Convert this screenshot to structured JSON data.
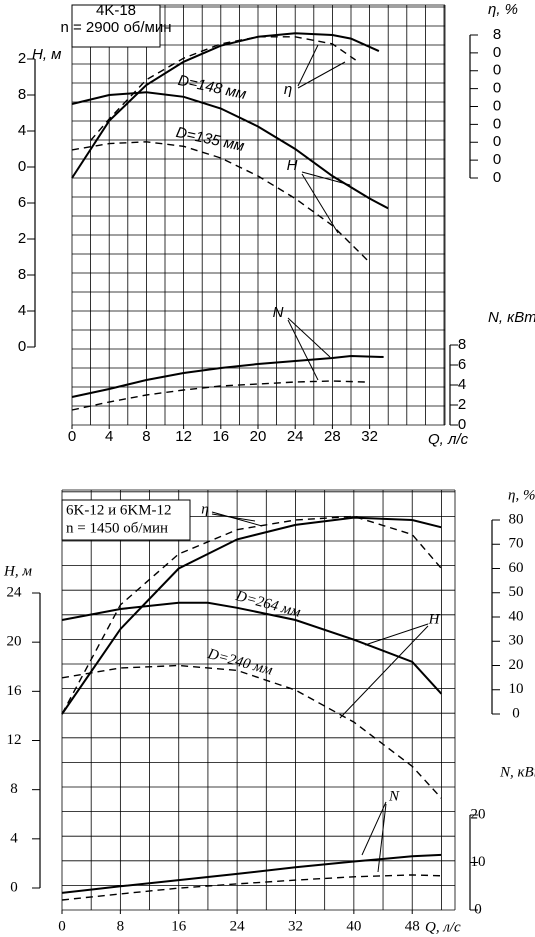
{
  "chart_data": [
    {
      "type": "line",
      "title": "4K-18",
      "subtitle": "n = 2900 об/мин",
      "ylabel": "H, м",
      "y2label": "η, %",
      "y3label": "N, кВт",
      "xlabel": "Q, л/с",
      "xlim": [
        0,
        40
      ],
      "xticks": [
        0,
        4,
        8,
        12,
        16,
        20,
        24,
        28,
        32
      ],
      "ylim": [
        0,
        32
      ],
      "yticks": [
        0,
        4,
        8,
        {
          "value": 12,
          "label": "2"
        },
        {
          "value": 16,
          "label": "6"
        },
        {
          "value": 20,
          "label": "0"
        },
        {
          "value": 24,
          "label": "4"
        },
        {
          "value": 28,
          "label": "8"
        },
        {
          "value": 32,
          "label": "2"
        }
      ],
      "y2lim": [
        0,
        80
      ],
      "y2ticks": [
        0,
        {
          "value": 10,
          "label": "0"
        },
        {
          "value": 20,
          "label": "0"
        },
        {
          "value": 30,
          "label": "0"
        },
        {
          "value": 40,
          "label": "0"
        },
        {
          "value": 50,
          "label": "0"
        },
        {
          "value": 60,
          "label": "0"
        },
        {
          "value": 70,
          "label": "0"
        },
        {
          "value": 80,
          "label": "8"
        }
      ],
      "y3lim": [
        0,
        8
      ],
      "y3ticks": [
        0,
        2,
        4,
        6,
        8
      ],
      "grid": true,
      "color": "#000000",
      "annotations": [
        "D=148 мм",
        "D=135 мм",
        "η",
        "H",
        "N"
      ],
      "series": [
        {
          "name": "D=148 мм",
          "axis": "y",
          "dashed": false,
          "x": [
            0,
            4,
            8,
            12,
            16,
            20,
            24,
            28,
            32,
            34
          ],
          "values": [
            27,
            28,
            28.3,
            27.8,
            26.5,
            24.5,
            22,
            19,
            16.5,
            15.4
          ]
        },
        {
          "name": "D=135 мм",
          "axis": "y",
          "dashed": true,
          "x": [
            0,
            4,
            8,
            12,
            16,
            20,
            24,
            28,
            32
          ],
          "values": [
            21.9,
            22.6,
            22.8,
            22.3,
            21,
            19,
            16.5,
            13.5,
            9.4
          ]
        },
        {
          "axis": "y2",
          "dashed": false,
          "x": [
            0,
            4,
            8,
            12,
            16,
            20,
            24,
            28,
            30,
            33
          ],
          "values": [
            0,
            32,
            52,
            65,
            74,
            79,
            81,
            80,
            78,
            71
          ]
        },
        {
          "axis": "y2",
          "dashed": true,
          "x": [
            2,
            4,
            8,
            12,
            16,
            20,
            24,
            28,
            30.5
          ],
          "values": [
            21,
            33,
            55,
            67,
            75,
            79,
            79,
            75,
            66
          ]
        },
        {
          "axis": "y3",
          "dashed": false,
          "x": [
            0,
            4,
            8,
            12,
            16,
            20,
            24,
            28,
            30,
            33.5
          ],
          "values": [
            2.8,
            3.6,
            4.5,
            5.2,
            5.7,
            6.1,
            6.4,
            6.7,
            6.9,
            6.8
          ]
        },
        {
          "axis": "y3",
          "dashed": true,
          "x": [
            0,
            4,
            8,
            12,
            16,
            20,
            24,
            28,
            31.5
          ],
          "values": [
            1.5,
            2.3,
            3,
            3.5,
            3.9,
            4.1,
            4.3,
            4.4,
            4.3
          ]
        }
      ]
    },
    {
      "type": "line",
      "title": "6K-12 и 6KM-12",
      "subtitle": "n = 1450 об/мин",
      "ylabel": "H, м",
      "y2label": "η, %",
      "y3label": "N, кВт",
      "xlabel": "Q, л/с",
      "xlim": [
        0,
        54
      ],
      "xticks": [
        0,
        8,
        16,
        24,
        32,
        40,
        48
      ],
      "ylim": [
        0,
        24
      ],
      "yticks": [
        0,
        4,
        8,
        12,
        16,
        20,
        24
      ],
      "y2lim": [
        0,
        80
      ],
      "y2ticks": [
        0,
        10,
        20,
        30,
        40,
        50,
        60,
        70,
        80
      ],
      "y3lim": [
        0,
        20
      ],
      "y3ticks": [
        0,
        10,
        20
      ],
      "grid": true,
      "color": "#000000",
      "annotations": [
        "D=264 мм",
        "D=240 мм",
        "η",
        "H",
        "N"
      ],
      "series": [
        {
          "name": "D=264 мм",
          "axis": "y",
          "dashed": false,
          "x": [
            0,
            8,
            16,
            20,
            24,
            32,
            40,
            48,
            52
          ],
          "values": [
            21.8,
            22.7,
            23.2,
            23.2,
            22.8,
            21.8,
            20.2,
            18.4,
            15.8
          ]
        },
        {
          "name": "D=240 мм",
          "axis": "y",
          "dashed": true,
          "x": [
            0,
            8,
            16,
            24,
            32,
            40,
            48,
            52
          ],
          "values": [
            17.1,
            17.9,
            18.1,
            17.7,
            16.1,
            13.5,
            9.9,
            7.3
          ]
        },
        {
          "axis": "y2",
          "dashed": false,
          "x": [
            0,
            8,
            16,
            24,
            32,
            40,
            48,
            52
          ],
          "values": [
            0,
            35,
            60,
            72,
            78,
            81,
            80,
            77
          ]
        },
        {
          "axis": "y2",
          "dashed": true,
          "x": [
            0,
            8,
            16,
            24,
            32,
            40,
            48,
            52
          ],
          "values": [
            0,
            45,
            66,
            76,
            80,
            81.5,
            74,
            60
          ]
        },
        {
          "axis": "y3",
          "dashed": false,
          "x": [
            0,
            8,
            16,
            24,
            32,
            40,
            48,
            52
          ],
          "values": [
            3.6,
            5,
            6.3,
            7.6,
            9,
            10.2,
            11.3,
            11.6
          ]
        },
        {
          "axis": "y3",
          "dashed": true,
          "x": [
            0,
            8,
            16,
            24,
            32,
            40,
            48,
            52
          ],
          "values": [
            2.1,
            3.4,
            4.6,
            5.5,
            6.3,
            7,
            7.4,
            7.2
          ]
        }
      ]
    }
  ]
}
